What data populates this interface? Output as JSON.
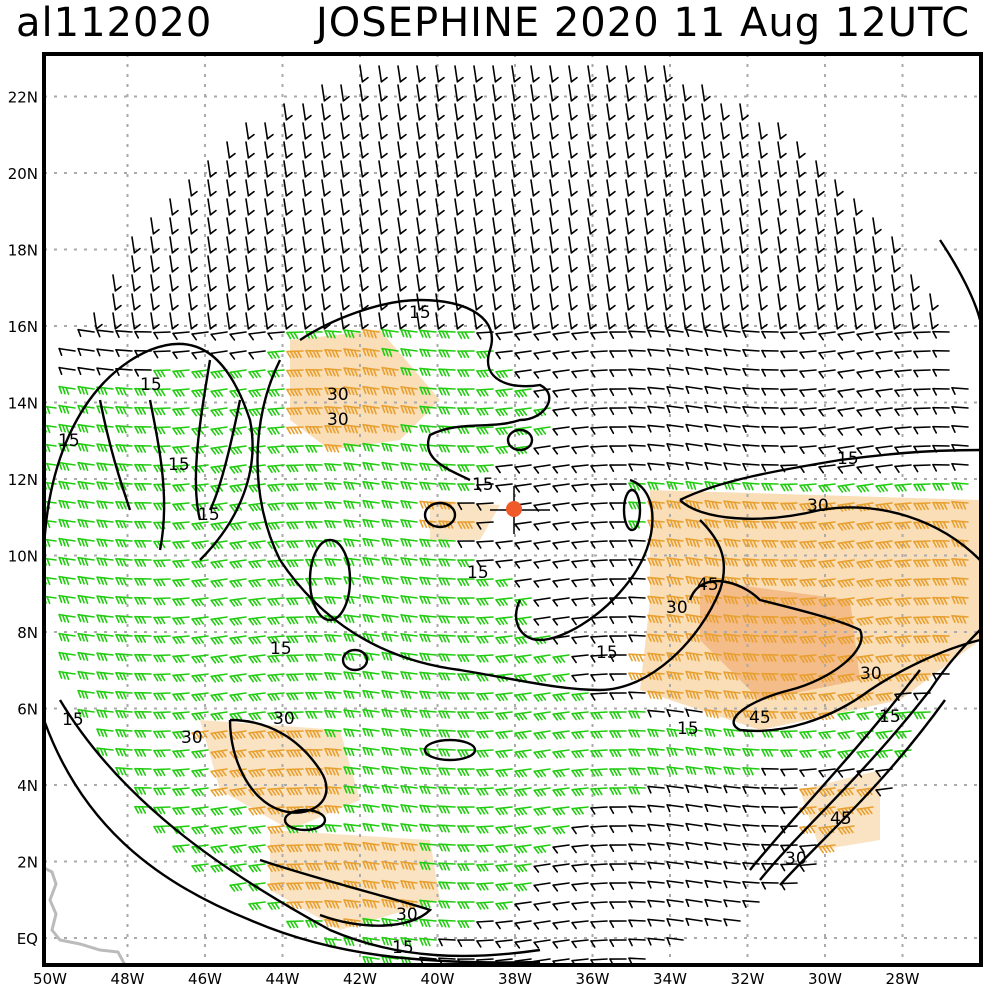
{
  "header": {
    "storm_id": "al112020",
    "title": "JOSEPHINE 2020 11 Aug 12UTC"
  },
  "map": {
    "lon_labels": [
      "50W",
      "48W",
      "46W",
      "44W",
      "42W",
      "40W",
      "38W",
      "36W",
      "34W",
      "32W",
      "30W",
      "28W"
    ],
    "lat_labels": [
      "EQ",
      "2N",
      "4N",
      "6N",
      "8N",
      "10N",
      "12N",
      "14N",
      "16N",
      "18N",
      "20N",
      "22N"
    ],
    "contour_labels": [
      "15",
      "30",
      "45"
    ],
    "storm_center": {
      "lon": -38.0,
      "lat": 11.3
    },
    "colors": {
      "contour": "#000000",
      "grid": "#aaaaaa",
      "barb_weak": "#000000",
      "barb_moderate": "#22cc11",
      "barb_strong": "#e8a030",
      "shade_strong": "#f2b860",
      "shade_extreme": "#e87830",
      "storm_marker": "#f05a28",
      "coast": "#bbbbbb"
    }
  }
}
